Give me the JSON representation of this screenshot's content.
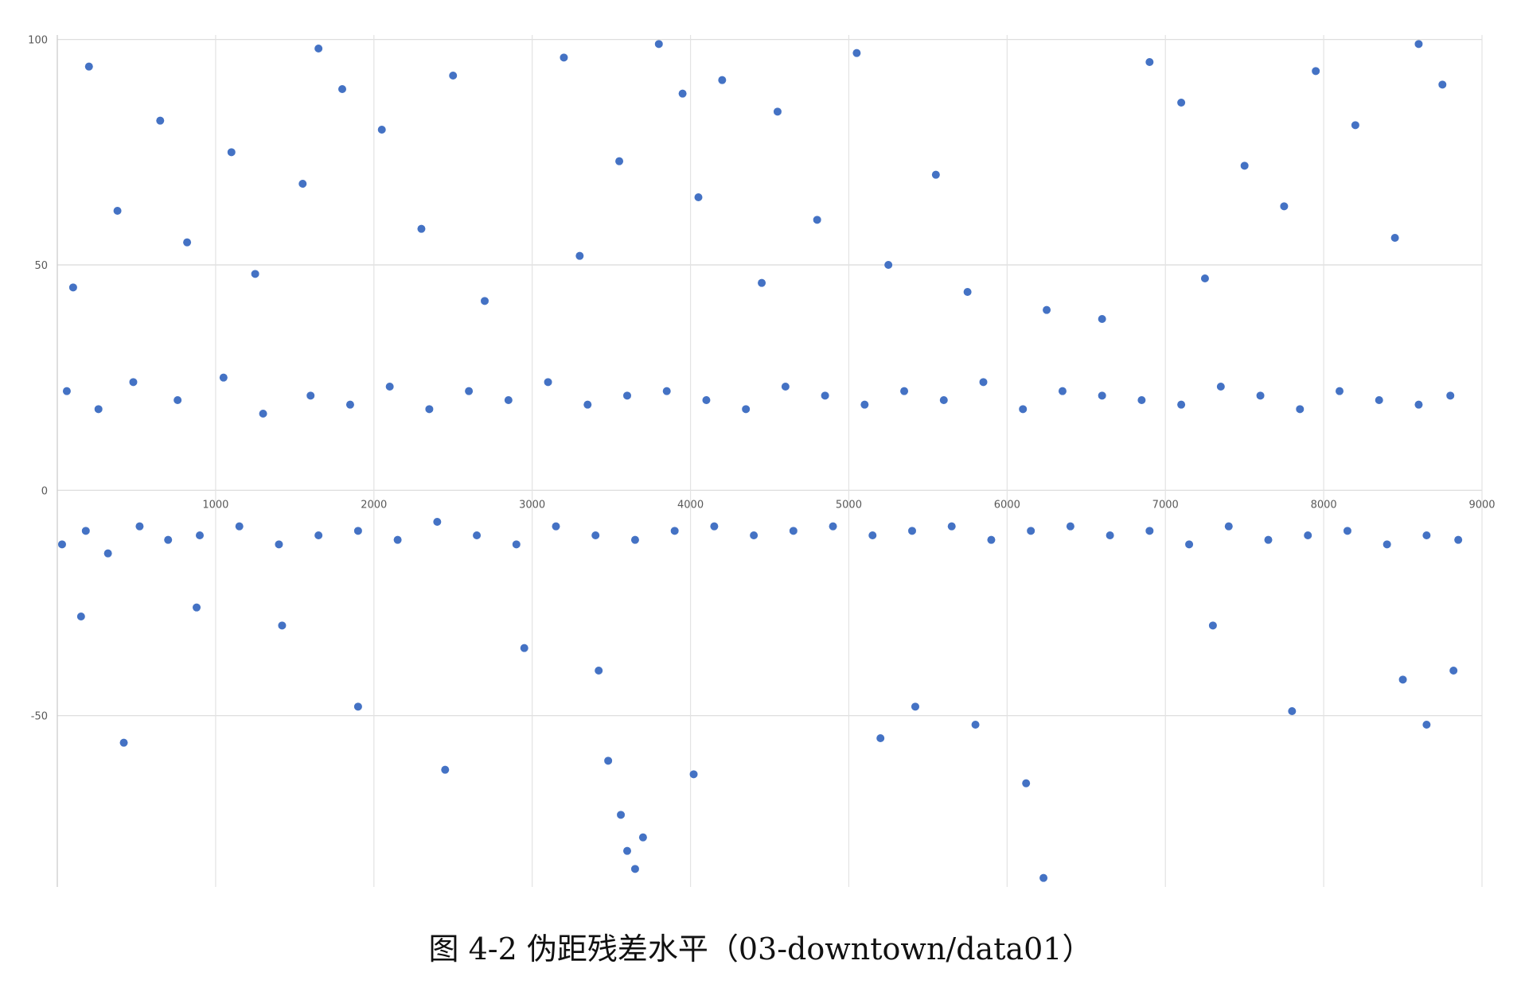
{
  "caption": "图 4-2  伪距残差水平（03-downtown/data01）",
  "chart_data": {
    "type": "scatter",
    "title": "",
    "xlabel": "",
    "ylabel": "",
    "xlim": [
      0,
      9000
    ],
    "ylim": [
      -88,
      101
    ],
    "x_ticks": [
      1000,
      2000,
      3000,
      4000,
      5000,
      6000,
      7000,
      8000,
      9000
    ],
    "x_tick_labels": [
      "1000",
      "2000",
      "3000",
      "4000",
      "5000",
      "6000",
      "7000",
      "8000",
      "9000"
    ],
    "y_ticks": [
      -50,
      0,
      50,
      100
    ],
    "y_tick_labels": [
      "-50",
      "0",
      "50",
      "100"
    ],
    "grid": true,
    "marker_color": "#4472C4",
    "series": [
      {
        "x": [
          30,
          180,
          320,
          520,
          700,
          900,
          1150,
          1400,
          1650,
          1900,
          2150,
          2400,
          2650,
          2900,
          3150,
          3400,
          3650,
          3900,
          4150,
          4400,
          4650,
          4900,
          5150,
          5400,
          5650,
          5900,
          6150,
          6400,
          6650,
          6900,
          7150,
          7400,
          7650,
          7900,
          8150,
          8400,
          8650,
          8850
        ],
        "y": [
          -12,
          -9,
          -14,
          -8,
          -11,
          -10,
          -8,
          -12,
          -10,
          -9,
          -11,
          -7,
          -10,
          -12,
          -8,
          -10,
          -11,
          -9,
          -8,
          -10,
          -9,
          -8,
          -10,
          -9,
          -8,
          -11,
          -9,
          -8,
          -10,
          -9,
          -12,
          -8,
          -11,
          -10,
          -9,
          -12,
          -10,
          -11
        ]
      },
      {
        "x": [
          60,
          260,
          480,
          760,
          1050,
          1300,
          1600,
          1850,
          2100,
          2350,
          2600,
          2850,
          3100,
          3350,
          3600,
          3850,
          4100,
          4350,
          4600,
          4850,
          5100,
          5350,
          5600,
          5850,
          6100,
          6350,
          6600,
          6850,
          7100,
          7350,
          7600,
          7850,
          8100,
          8350,
          8600,
          8800
        ],
        "y": [
          22,
          18,
          24,
          20,
          25,
          17,
          21,
          19,
          23,
          18,
          22,
          20,
          24,
          19,
          21,
          22,
          20,
          18,
          23,
          21,
          19,
          22,
          20,
          24,
          18,
          22,
          21,
          20,
          19,
          23,
          21,
          18,
          22,
          20,
          19,
          21
        ]
      },
      {
        "x": [
          200,
          650,
          1100,
          1650,
          1800,
          2050,
          2500,
          3200,
          3550,
          3800,
          3950,
          4200,
          4550,
          5050,
          5550,
          6900,
          7100,
          7500,
          7950,
          8200,
          8600,
          8750
        ],
        "y": [
          94,
          82,
          75,
          98,
          89,
          80,
          92,
          96,
          73,
          99,
          88,
          91,
          84,
          97,
          70,
          95,
          86,
          72,
          93,
          81,
          99,
          90
        ]
      },
      {
        "x": [
          100,
          380,
          820,
          1250,
          1550,
          2300,
          2700,
          3300,
          4050,
          4450,
          4800,
          5250,
          5750,
          6250,
          6600,
          7250,
          7750,
          8450
        ],
        "y": [
          45,
          62,
          55,
          48,
          68,
          58,
          42,
          52,
          65,
          46,
          60,
          50,
          44,
          40,
          38,
          47,
          63,
          56
        ]
      },
      {
        "x": [
          150,
          420,
          880,
          1420,
          1900,
          2450,
          2950,
          3420,
          3480,
          3560,
          3600,
          3650,
          3700,
          4020,
          5200,
          5420,
          5800,
          6120,
          6230,
          7300,
          7800,
          8500,
          8650,
          8820
        ],
        "y": [
          -28,
          -56,
          -26,
          -30,
          -48,
          -62,
          -35,
          -40,
          -60,
          -72,
          -80,
          -84,
          -77,
          -63,
          -55,
          -48,
          -52,
          -65,
          -86,
          -30,
          -49,
          -42,
          -52,
          -40
        ]
      }
    ]
  }
}
